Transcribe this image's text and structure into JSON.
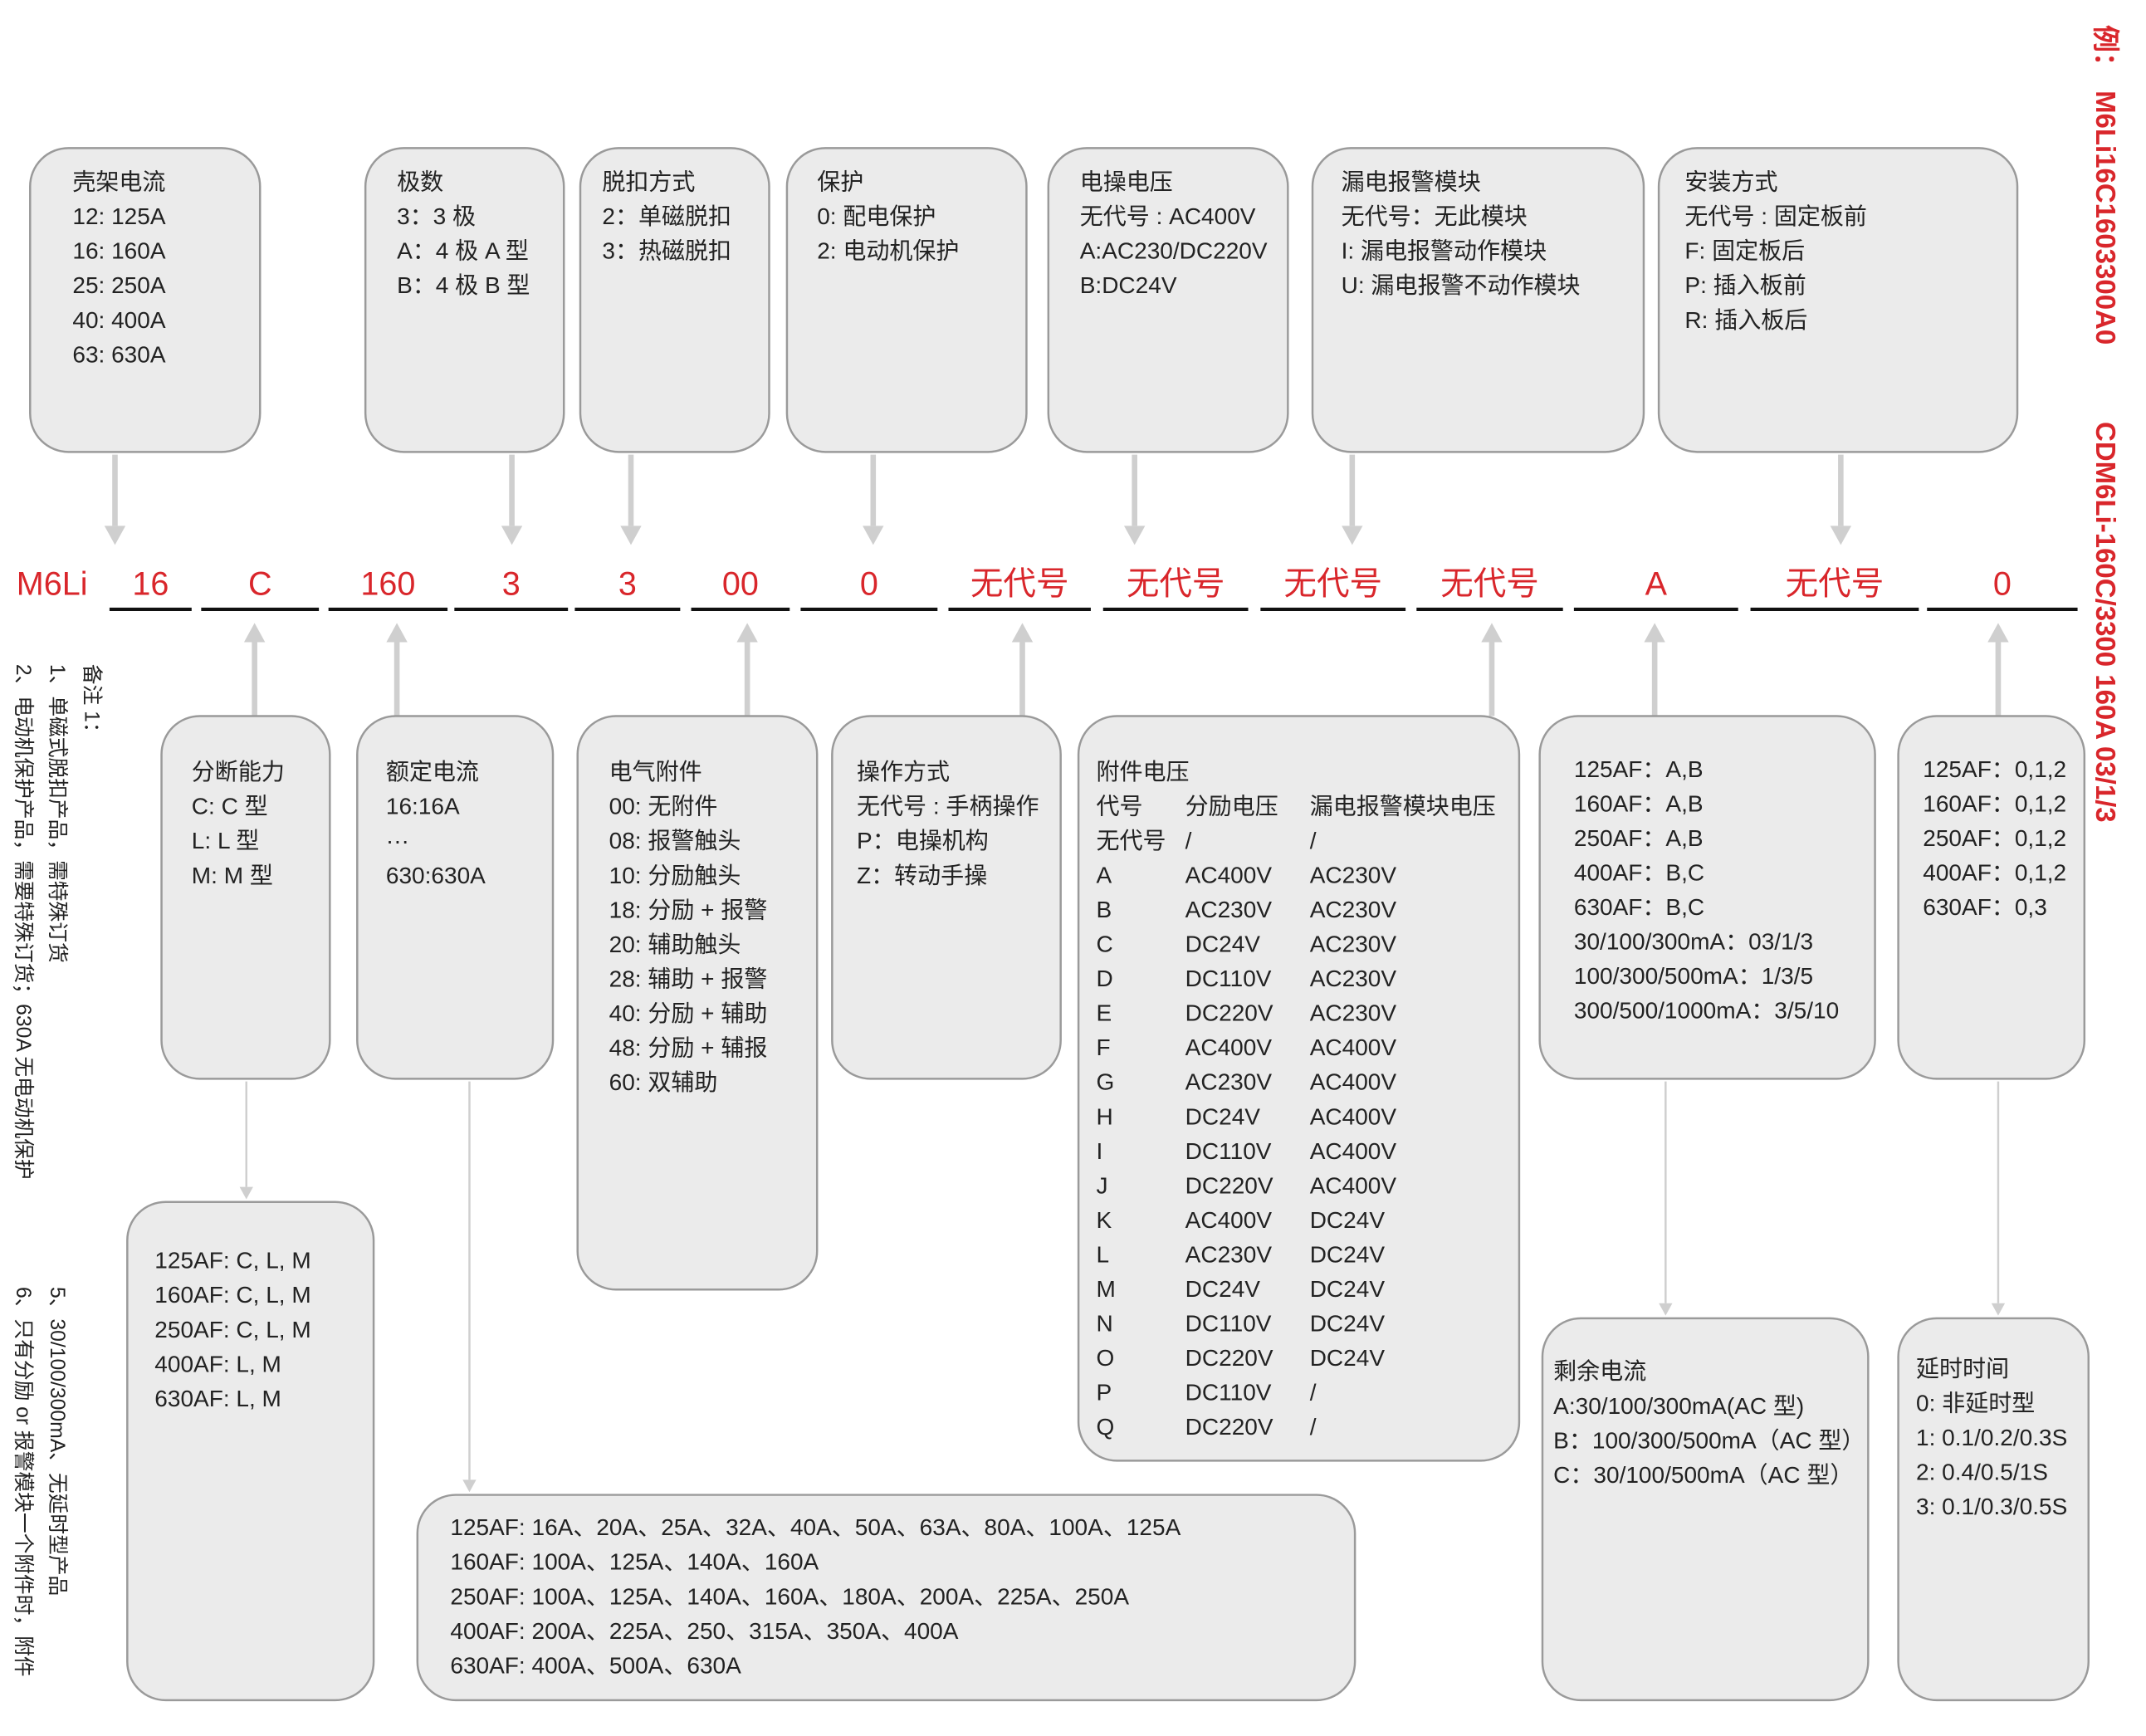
{
  "example": {
    "label": "例：",
    "code": "M6Li16C1603300A0",
    "full": "CDM6Li-160C/3300 160A 03/1/3"
  },
  "notes": {
    "title": "备注 1：",
    "items": [
      "1、单磁式脱扣产品，需特殊订货",
      "2、电动机保护产品，需要特殊订货；630A 无电动机保护",
      "5、30/100/300mA、无延时型产品",
      "6、只有分励 or 报警模块一个附件时，附件"
    ]
  },
  "code": [
    "M6Li",
    "16",
    "C",
    "160",
    "3",
    "3",
    "00",
    "0",
    "无代号",
    "无代号",
    "无代号",
    "无代号",
    "A",
    "无代号",
    "0"
  ],
  "top_boxes": [
    {
      "title": "壳架电流",
      "lines": [
        "12: 125A",
        "16: 160A",
        "25: 250A",
        "40: 400A",
        "63: 630A"
      ]
    },
    {
      "title": "极数",
      "lines": [
        "3：3 极",
        "A：4 极 A 型",
        "B：4 极 B 型"
      ]
    },
    {
      "title": "脱扣方式",
      "lines": [
        "2：单磁脱扣",
        "3：热磁脱扣"
      ]
    },
    {
      "title": "保护",
      "lines": [
        "0: 配电保护",
        "2: 电动机保护"
      ]
    },
    {
      "title": "电操电压",
      "lines": [
        "无代号 : AC400V",
        "A:AC230/DC220V",
        "B:DC24V"
      ]
    },
    {
      "title": "漏电报警模块",
      "lines": [
        "无代号：无此模块",
        "I: 漏电报警动作模块",
        "U: 漏电报警不动作模块"
      ]
    },
    {
      "title": "安装方式",
      "lines": [
        "无代号 : 固定板前",
        "F: 固定板后",
        "P: 插入板前",
        "R: 插入板后"
      ]
    }
  ],
  "bottom_boxes": [
    {
      "title": "分断能力",
      "lines": [
        "C: C 型",
        "L: L 型",
        "M: M 型"
      ]
    },
    {
      "title": "额定电流",
      "lines": [
        "16:16A",
        "···",
        "630:630A"
      ]
    },
    {
      "title": "电气附件",
      "lines": [
        "00: 无附件",
        "08: 报警触头",
        "10: 分励触头",
        "18: 分励 + 报警",
        "20: 辅助触头",
        "28: 辅助 + 报警",
        "40: 分励 + 辅助",
        "48: 分励 + 辅报",
        "60: 双辅助"
      ]
    },
    {
      "title": "操作方式",
      "lines": [
        "无代号 : 手柄操作",
        "P：电操机构",
        "Z：转动手操"
      ]
    },
    {
      "lines": [
        "125AF：A,B",
        "160AF：A,B",
        "250AF：A,B",
        "400AF：B,C",
        "630AF：B,C",
        "30/100/300mA：03/1/3",
        "100/300/500mA：1/3/5",
        "300/500/1000mA：3/5/10"
      ]
    },
    {
      "lines": [
        "125AF：0,1,2",
        "160AF：0,1,2",
        "250AF：0,1,2",
        "400AF：0,1,2",
        "630AF：0,3"
      ]
    }
  ],
  "accessory_voltage": {
    "title": "附件电压",
    "header": [
      "代号",
      "分励电压",
      "漏电报警模块电压"
    ],
    "rows": [
      [
        "无代号",
        "/",
        "/"
      ],
      [
        "A",
        "AC400V",
        "AC230V"
      ],
      [
        "B",
        "AC230V",
        "AC230V"
      ],
      [
        "C",
        "DC24V",
        "AC230V"
      ],
      [
        "D",
        "DC110V",
        "AC230V"
      ],
      [
        "E",
        "DC220V",
        "AC230V"
      ],
      [
        "F",
        "AC400V",
        "AC400V"
      ],
      [
        "G",
        "AC230V",
        "AC400V"
      ],
      [
        "H",
        "DC24V",
        "AC400V"
      ],
      [
        "I",
        "DC110V",
        "AC400V"
      ],
      [
        "J",
        "DC220V",
        "AC400V"
      ],
      [
        "K",
        "AC400V",
        "DC24V"
      ],
      [
        "L",
        "AC230V",
        "DC24V"
      ],
      [
        "M",
        "DC24V",
        "DC24V"
      ],
      [
        "N",
        "DC110V",
        "DC24V"
      ],
      [
        "O",
        "DC220V",
        "DC24V"
      ],
      [
        "P",
        "DC110V",
        "/"
      ],
      [
        "Q",
        "DC220V",
        "/"
      ]
    ]
  },
  "detail_boxes": [
    {
      "lines": [
        "125AF:  C, L, M",
        "160AF:  C, L, M",
        "250AF:  C, L, M",
        "400AF:  L, M",
        "630AF:  L, M"
      ]
    },
    {
      "lines": [
        "125AF: 16A、20A、25A、32A、40A、50A、63A、80A、100A、125A",
        "160AF: 100A、125A、140A、160A",
        "250AF: 100A、125A、140A、160A、180A、200A、225A、250A",
        "400AF: 200A、225A、250、315A、350A、400A",
        "630AF: 400A、500A、630A"
      ]
    },
    {
      "title": "剩余电流",
      "lines": [
        "A:30/100/300mA(AC 型)",
        "B：100/300/500mA（AC 型）",
        "C：30/100/500mA（AC 型）"
      ]
    },
    {
      "title": "延时时间",
      "lines": [
        "0: 非延时型",
        "1: 0.1/0.2/0.3S",
        "2: 0.4/0.5/1S",
        "3: 0.1/0.3/0.5S"
      ]
    }
  ]
}
